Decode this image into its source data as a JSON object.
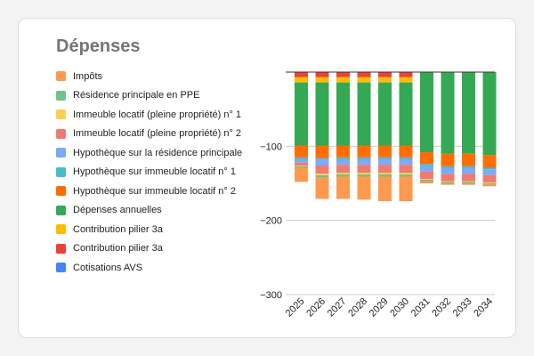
{
  "chart_data": {
    "type": "bar",
    "stacked": true,
    "title": "Dépenses",
    "legend_position": "left",
    "grid": true,
    "xlabel": "",
    "ylabel": "",
    "ylim": [
      -300,
      0
    ],
    "yticks": [
      -100,
      -200,
      -300
    ],
    "categories": [
      "2025",
      "2026",
      "2027",
      "2028",
      "2029",
      "2030",
      "2031",
      "2032",
      "2033",
      "2034"
    ],
    "series": [
      {
        "name": "Cotisations AVS",
        "color": "#4285f4",
        "values": [
          0,
          0,
          0,
          0,
          0,
          0,
          0,
          0,
          0,
          0
        ]
      },
      {
        "name": "Contribution pilier 3a",
        "color": "#ea4335",
        "values": [
          -7,
          -7,
          -7,
          -7,
          -7,
          -7,
          0,
          0,
          0,
          0
        ]
      },
      {
        "name": "Contribution pilier 3a",
        "color": "#fbbc04",
        "values": [
          -7,
          -7,
          -7,
          -7,
          -7,
          -7,
          0,
          0,
          0,
          0
        ]
      },
      {
        "name": "Dépenses annuelles",
        "color": "#34a853",
        "values": [
          -85,
          -85,
          -85,
          -85,
          -85,
          -85,
          -108,
          -110,
          -110,
          -112
        ]
      },
      {
        "name": "Hypothèque sur immeuble locatif n° 2",
        "color": "#ff6d01",
        "values": [
          -16,
          -17,
          -16,
          -16,
          -16,
          -16,
          -16,
          -17,
          -17,
          -17
        ]
      },
      {
        "name": "Hypothèque sur immeuble locatif n° 1",
        "color": "#46bdc6",
        "values": [
          -2,
          -2,
          -2,
          -2,
          -2,
          -2,
          -2,
          -2,
          -2,
          -2
        ]
      },
      {
        "name": "Hypothèque sur la résidence principale",
        "color": "#7baaf7",
        "values": [
          -5,
          -8,
          -8,
          -8,
          -8,
          -8,
          -8,
          -8,
          -8,
          -8
        ]
      },
      {
        "name": "Immeuble locatif (pleine propriété) n° 2",
        "color": "#f07b72",
        "values": [
          -4,
          -11,
          -11,
          -11,
          -11,
          -11,
          -10,
          -10,
          -10,
          -10
        ]
      },
      {
        "name": "Immeuble locatif (pleine propriété) n° 1",
        "color": "#fcd04f",
        "values": [
          -1,
          -2,
          -2,
          -2,
          -2,
          -2,
          -1,
          -1,
          -1,
          -1
        ]
      },
      {
        "name": "Résidence principale en PPE",
        "color": "#71c287",
        "values": [
          -2,
          -3,
          -3,
          -3,
          -3,
          -3,
          -2,
          -2,
          -2,
          -2
        ]
      },
      {
        "name": "Impôts",
        "color": "#ff994d",
        "values": [
          -19,
          -29,
          -30,
          -31,
          -33,
          -33,
          -3,
          -2,
          -2,
          -2
        ]
      }
    ],
    "legend_order": [
      "Impôts",
      "Résidence principale en PPE",
      "Immeuble locatif (pleine propriété) n° 1",
      "Immeuble locatif (pleine propriété) n° 2",
      "Hypothèque sur la résidence principale",
      "Hypothèque sur immeuble locatif n° 1",
      "Hypothèque sur immeuble locatif n° 2",
      "Dépenses annuelles",
      "Contribution pilier 3a",
      "Contribution pilier 3a",
      "Cotisations AVS"
    ]
  }
}
